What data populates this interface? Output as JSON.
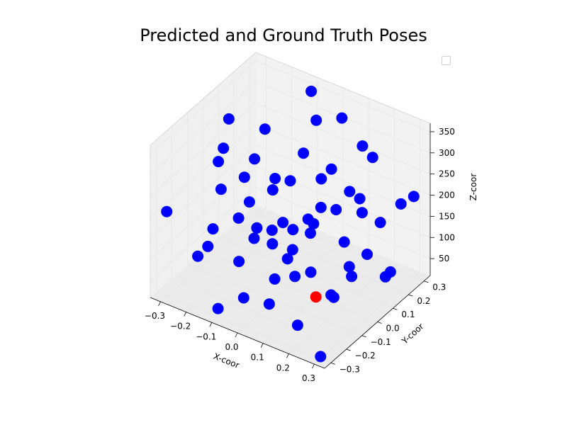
{
  "chart_data": {
    "type": "scatter",
    "projection": "3d",
    "title": "Predicted and Ground Truth Poses",
    "xlabel": "X-coor",
    "ylabel": "Y-coor",
    "zlabel": "Z-coor",
    "xlim": [
      -0.34,
      0.34
    ],
    "ylim": [
      -0.34,
      0.34
    ],
    "zlim": [
      10,
      370
    ],
    "xticks": [
      "−0.3",
      "−0.2",
      "−0.1",
      "0.0",
      "0.1",
      "0.2",
      "0.3"
    ],
    "yticks": [
      "−0.3",
      "−0.2",
      "−0.1",
      "0.0",
      "0.1",
      "0.2",
      "0.3"
    ],
    "zticks": [
      "50",
      "100",
      "150",
      "200",
      "250",
      "300",
      "350"
    ],
    "grid": true,
    "legend": {
      "placement": "top-right",
      "entries": []
    },
    "colors": {
      "predicted": "#0000ff",
      "ground_truth": "#ff0000",
      "pane": "#f2f2f2",
      "grid": "#e6e6e6"
    },
    "series": [
      {
        "color": "#0000ff",
        "points": [
          [
            -0.1,
            0.3,
            350
          ],
          [
            0.05,
            0.25,
            340
          ],
          [
            0.2,
            0.2,
            300
          ],
          [
            -0.3,
            0.1,
            300
          ],
          [
            0.3,
            -0.2,
            330
          ],
          [
            -0.2,
            -0.1,
            320
          ],
          [
            0.1,
            0.1,
            280
          ],
          [
            0.0,
            0.0,
            260
          ],
          [
            0.15,
            -0.05,
            250
          ],
          [
            -0.25,
            0.25,
            240
          ],
          [
            0.25,
            0.05,
            230
          ],
          [
            -0.05,
            -0.25,
            240
          ],
          [
            0.3,
            0.3,
            200
          ],
          [
            -0.3,
            -0.3,
            210
          ],
          [
            0.0,
            0.2,
            200
          ],
          [
            0.2,
            -0.3,
            180
          ],
          [
            -0.15,
            0.15,
            180
          ],
          [
            0.1,
            -0.15,
            170
          ],
          [
            0.3,
            0.0,
            160
          ],
          [
            -0.3,
            0.05,
            150
          ],
          [
            0.05,
            0.3,
            150
          ],
          [
            -0.1,
            -0.05,
            140
          ],
          [
            0.2,
            0.25,
            130
          ],
          [
            0.15,
            0.1,
            120
          ],
          [
            -0.2,
            -0.2,
            120
          ],
          [
            0.25,
            -0.15,
            100
          ],
          [
            -0.05,
            0.1,
            100
          ],
          [
            0.1,
            -0.3,
            90
          ],
          [
            -0.25,
            0.3,
            80
          ],
          [
            0.3,
            0.15,
            70
          ],
          [
            0.0,
            -0.1,
            60
          ],
          [
            -0.15,
            0.2,
            60
          ],
          [
            0.2,
            -0.05,
            50
          ],
          [
            -0.3,
            -0.1,
            40
          ],
          [
            0.05,
            0.05,
            40
          ],
          [
            -0.1,
            -0.3,
            30
          ],
          [
            0.25,
            0.2,
            30
          ],
          [
            0.15,
            -0.2,
            20
          ],
          [
            -0.2,
            0.0,
            20
          ],
          [
            0.3,
            -0.3,
            15
          ],
          [
            -0.05,
            0.25,
            310
          ],
          [
            0.1,
            0.3,
            270
          ],
          [
            -0.25,
            -0.05,
            260
          ],
          [
            0.05,
            -0.2,
            220
          ],
          [
            -0.15,
            -0.25,
            190
          ],
          [
            0.25,
            0.3,
            170
          ],
          [
            -0.3,
            0.2,
            130
          ],
          [
            0.0,
            0.15,
            110
          ],
          [
            0.2,
            0.05,
            90
          ],
          [
            -0.1,
            0.05,
            70
          ],
          [
            0.1,
            -0.05,
            210
          ],
          [
            -0.2,
            0.1,
            230
          ],
          [
            0.3,
            -0.1,
            140
          ],
          [
            -0.05,
            -0.15,
            160
          ],
          [
            0.15,
            0.2,
            190
          ],
          [
            -0.25,
            0.15,
            100
          ],
          [
            0.05,
            -0.1,
            120
          ],
          [
            0.2,
            -0.2,
            250
          ],
          [
            -0.1,
            0.25,
            220
          ],
          [
            0.0,
            -0.3,
            80
          ]
        ]
      },
      {
        "color": "#ff0000",
        "points": [
          [
            0.1,
            0.0,
            0
          ]
        ]
      }
    ]
  }
}
